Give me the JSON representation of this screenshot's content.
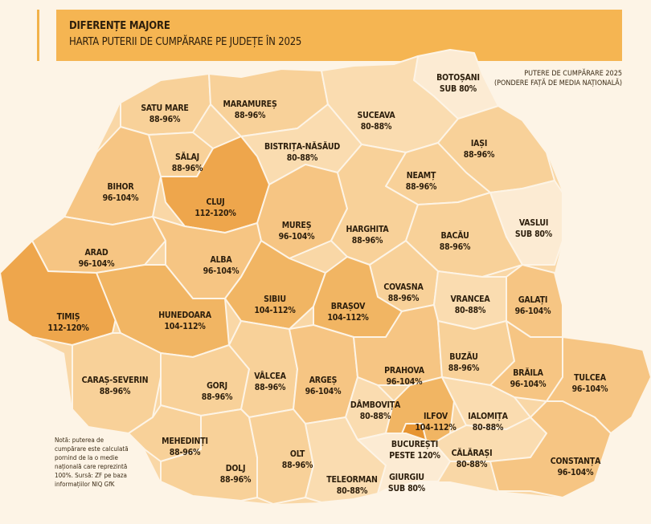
{
  "header": {
    "title": "DIFERENȚE MAJORE",
    "subtitle": "HARTA PUTERII DE CUMPĂRARE PE JUDEȚE ÎN 2025"
  },
  "legend": {
    "line1": "PUTERE DE CUMPĂRARE 2025",
    "line2": "(PONDERE FAȚĂ DE MEDIA NAȚIONALĂ)"
  },
  "colors": {
    "sub_80": "#fcebd3",
    "80_88": "#fadcb0",
    "88_96": "#f8d199",
    "96_104": "#f6c583",
    "104_112": "#f1b563",
    "112_120": "#eea64c",
    "peste_120": "#e79532"
  },
  "counties": [
    {
      "name": "SATU MARE",
      "value": "88-96%",
      "cls": "88_96"
    },
    {
      "name": "MARAMUREȘ",
      "value": "88-96%",
      "cls": "88_96"
    },
    {
      "name": "BOTOȘANI",
      "value": "SUB 80%",
      "cls": "sub_80"
    },
    {
      "name": "SUCEAVA",
      "value": "80-88%",
      "cls": "80_88"
    },
    {
      "name": "BIHOR",
      "value": "96-104%",
      "cls": "96_104"
    },
    {
      "name": "SĂLAJ",
      "value": "88-96%",
      "cls": "88_96"
    },
    {
      "name": "BISTRIȚA-NĂSĂUD",
      "value": "80-88%",
      "cls": "80_88"
    },
    {
      "name": "IAȘI",
      "value": "88-96%",
      "cls": "88_96"
    },
    {
      "name": "NEAMȚ",
      "value": "88-96%",
      "cls": "88_96"
    },
    {
      "name": "CLUJ",
      "value": "112-120%",
      "cls": "112_120"
    },
    {
      "name": "MUREȘ",
      "value": "96-104%",
      "cls": "96_104"
    },
    {
      "name": "VASLUI",
      "value": "SUB 80%",
      "cls": "sub_80"
    },
    {
      "name": "ARAD",
      "value": "96-104%",
      "cls": "96_104"
    },
    {
      "name": "HARGHITA",
      "value": "88-96%",
      "cls": "88_96"
    },
    {
      "name": "BACĂU",
      "value": "88-96%",
      "cls": "88_96"
    },
    {
      "name": "ALBA",
      "value": "96-104%",
      "cls": "96_104"
    },
    {
      "name": "COVASNA",
      "value": "88-96%",
      "cls": "88_96"
    },
    {
      "name": "TIMIȘ",
      "value": "112-120%",
      "cls": "112_120"
    },
    {
      "name": "HUNEDOARA",
      "value": "104-112%",
      "cls": "104_112"
    },
    {
      "name": "SIBIU",
      "value": "104-112%",
      "cls": "104_112"
    },
    {
      "name": "BRAȘOV",
      "value": "104-112%",
      "cls": "104_112"
    },
    {
      "name": "VRANCEA",
      "value": "80-88%",
      "cls": "80_88"
    },
    {
      "name": "GALAȚI",
      "value": "96-104%",
      "cls": "96_104"
    },
    {
      "name": "CARAȘ-SEVERIN",
      "value": "88-96%",
      "cls": "88_96"
    },
    {
      "name": "GORJ",
      "value": "88-96%",
      "cls": "88_96"
    },
    {
      "name": "VÂLCEA",
      "value": "88-96%",
      "cls": "88_96"
    },
    {
      "name": "ARGEȘ",
      "value": "96-104%",
      "cls": "96_104"
    },
    {
      "name": "PRAHOVA",
      "value": "96-104%",
      "cls": "96_104"
    },
    {
      "name": "BUZĂU",
      "value": "88-96%",
      "cls": "88_96"
    },
    {
      "name": "BRĂILA",
      "value": "96-104%",
      "cls": "96_104"
    },
    {
      "name": "TULCEA",
      "value": "96-104%",
      "cls": "96_104"
    },
    {
      "name": "DÂMBOVIȚA",
      "value": "80-88%",
      "cls": "80_88"
    },
    {
      "name": "ILFOV",
      "value": "104-112%",
      "cls": "104_112"
    },
    {
      "name": "IALOMIȚA",
      "value": "80-88%",
      "cls": "80_88"
    },
    {
      "name": "MEHEDINȚI",
      "value": "88-96%",
      "cls": "88_96"
    },
    {
      "name": "BUCUREȘTI",
      "value": "PESTE 120%",
      "cls": "peste_120"
    },
    {
      "name": "CĂLĂRAȘI",
      "value": "80-88%",
      "cls": "80_88"
    },
    {
      "name": "DOLJ",
      "value": "88-96%",
      "cls": "88_96"
    },
    {
      "name": "OLT",
      "value": "88-96%",
      "cls": "88_96"
    },
    {
      "name": "TELEORMAN",
      "value": "80-88%",
      "cls": "80_88"
    },
    {
      "name": "GIURGIU",
      "value": "SUB 80%",
      "cls": "sub_80"
    },
    {
      "name": "CONSTANȚA",
      "value": "96-104%",
      "cls": "96_104"
    }
  ],
  "note": {
    "line1": "Notă: puterea de",
    "line2": "cumpărare este calculată",
    "line3": "pornind de la o medie",
    "line4": "națională care reprezintă",
    "line5": "100%. Sursă: ZF pe baza",
    "line6": "informațiilor NIQ GfK"
  }
}
